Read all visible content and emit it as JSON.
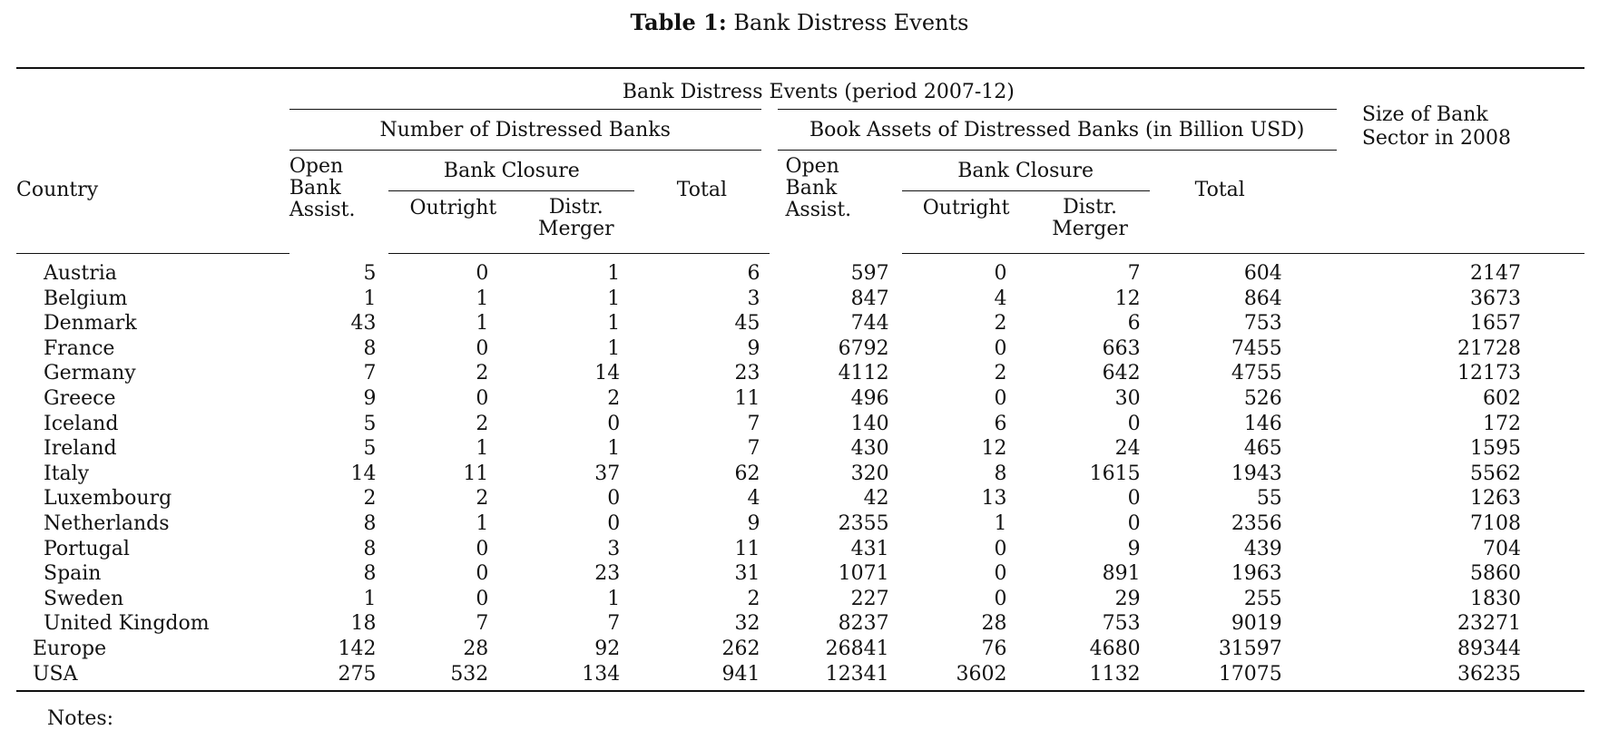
{
  "caption": {
    "label": "Table 1:",
    "title": "Bank Distress Events"
  },
  "header": {
    "period_group": "Bank Distress Events (period 2007-12)",
    "number_group": "Number of Distressed Banks",
    "assets_group": "Book Assets of Distressed Banks (in Billion USD)",
    "size_col_line1": "Size of Bank",
    "size_col_line2": "Sector in 2008",
    "country": "Country",
    "open_line1": "Open",
    "open_line2": "Bank",
    "open_line3": "Assist.",
    "closure_group": "Bank Closure",
    "outright": "Outright",
    "distr_line1": "Distr.",
    "distr_line2": "Merger",
    "total": "Total"
  },
  "rows": [
    {
      "country": "Austria",
      "n_open": "5",
      "n_out": "0",
      "n_distr": "1",
      "n_total": "6",
      "a_open": "597",
      "a_out": "0",
      "a_distr": "7",
      "a_total": "604",
      "size": "2147"
    },
    {
      "country": "Belgium",
      "n_open": "1",
      "n_out": "1",
      "n_distr": "1",
      "n_total": "3",
      "a_open": "847",
      "a_out": "4",
      "a_distr": "12",
      "a_total": "864",
      "size": "3673"
    },
    {
      "country": "Denmark",
      "n_open": "43",
      "n_out": "1",
      "n_distr": "1",
      "n_total": "45",
      "a_open": "744",
      "a_out": "2",
      "a_distr": "6",
      "a_total": "753",
      "size": "1657"
    },
    {
      "country": "France",
      "n_open": "8",
      "n_out": "0",
      "n_distr": "1",
      "n_total": "9",
      "a_open": "6792",
      "a_out": "0",
      "a_distr": "663",
      "a_total": "7455",
      "size": "21728"
    },
    {
      "country": "Germany",
      "n_open": "7",
      "n_out": "2",
      "n_distr": "14",
      "n_total": "23",
      "a_open": "4112",
      "a_out": "2",
      "a_distr": "642",
      "a_total": "4755",
      "size": "12173"
    },
    {
      "country": "Greece",
      "n_open": "9",
      "n_out": "0",
      "n_distr": "2",
      "n_total": "11",
      "a_open": "496",
      "a_out": "0",
      "a_distr": "30",
      "a_total": "526",
      "size": "602"
    },
    {
      "country": "Iceland",
      "n_open": "5",
      "n_out": "2",
      "n_distr": "0",
      "n_total": "7",
      "a_open": "140",
      "a_out": "6",
      "a_distr": "0",
      "a_total": "146",
      "size": "172"
    },
    {
      "country": "Ireland",
      "n_open": "5",
      "n_out": "1",
      "n_distr": "1",
      "n_total": "7",
      "a_open": "430",
      "a_out": "12",
      "a_distr": "24",
      "a_total": "465",
      "size": "1595"
    },
    {
      "country": "Italy",
      "n_open": "14",
      "n_out": "11",
      "n_distr": "37",
      "n_total": "62",
      "a_open": "320",
      "a_out": "8",
      "a_distr": "1615",
      "a_total": "1943",
      "size": "5562"
    },
    {
      "country": "Luxembourg",
      "n_open": "2",
      "n_out": "2",
      "n_distr": "0",
      "n_total": "4",
      "a_open": "42",
      "a_out": "13",
      "a_distr": "0",
      "a_total": "55",
      "size": "1263"
    },
    {
      "country": "Netherlands",
      "n_open": "8",
      "n_out": "1",
      "n_distr": "0",
      "n_total": "9",
      "a_open": "2355",
      "a_out": "1",
      "a_distr": "0",
      "a_total": "2356",
      "size": "7108"
    },
    {
      "country": "Portugal",
      "n_open": "8",
      "n_out": "0",
      "n_distr": "3",
      "n_total": "11",
      "a_open": "431",
      "a_out": "0",
      "a_distr": "9",
      "a_total": "439",
      "size": "704"
    },
    {
      "country": "Spain",
      "n_open": "8",
      "n_out": "0",
      "n_distr": "23",
      "n_total": "31",
      "a_open": "1071",
      "a_out": "0",
      "a_distr": "891",
      "a_total": "1963",
      "size": "5860"
    },
    {
      "country": "Sweden",
      "n_open": "1",
      "n_out": "0",
      "n_distr": "1",
      "n_total": "2",
      "a_open": "227",
      "a_out": "0",
      "a_distr": "29",
      "a_total": "255",
      "size": "1830"
    },
    {
      "country": "United Kingdom",
      "n_open": "18",
      "n_out": "7",
      "n_distr": "7",
      "n_total": "32",
      "a_open": "8237",
      "a_out": "28",
      "a_distr": "753",
      "a_total": "9019",
      "size": "23271"
    }
  ],
  "aggregates": [
    {
      "country": "Europe",
      "n_open": "142",
      "n_out": "28",
      "n_distr": "92",
      "n_total": "262",
      "a_open": "26841",
      "a_out": "76",
      "a_distr": "4680",
      "a_total": "31597",
      "size": "89344"
    },
    {
      "country": "USA",
      "n_open": "275",
      "n_out": "532",
      "n_distr": "134",
      "n_total": "941",
      "a_open": "12341",
      "a_out": "3602",
      "a_distr": "1132",
      "a_total": "17075",
      "size": "36235"
    }
  ],
  "note": "Notes:"
}
